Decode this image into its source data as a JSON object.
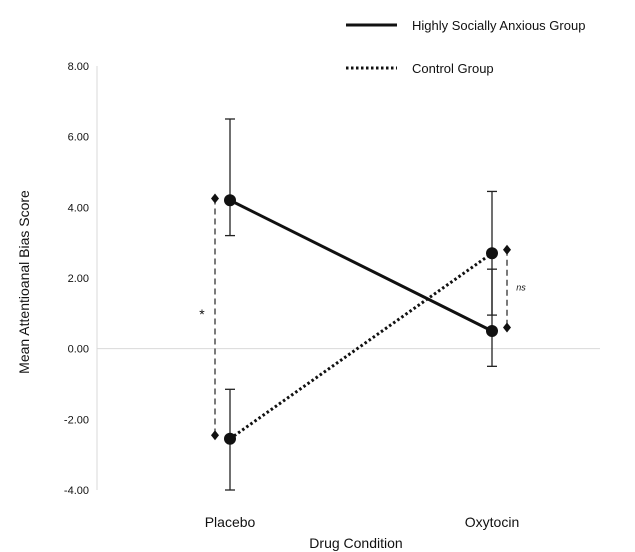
{
  "chart_data": {
    "type": "line",
    "xlabel": "Drug Condition",
    "ylabel": "Mean Attentioanal Bias Score",
    "categories": [
      "Placebo",
      "Oxytocin"
    ],
    "ylim": [
      -4,
      8
    ],
    "yticks": [
      "-4.00",
      "-2.00",
      "0.00",
      "2.00",
      "4.00",
      "6.00",
      "8.00"
    ],
    "ytick_values": [
      -4,
      -2,
      0,
      2,
      4,
      6,
      8
    ],
    "grid": false,
    "legend_position": "top-right",
    "series": [
      {
        "name": "Highly Socially Anxious Group",
        "line_style": "solid",
        "values": [
          4.2,
          0.5
        ],
        "error_upper": [
          6.5,
          2.25
        ],
        "error_lower": [
          3.2,
          -0.5
        ]
      },
      {
        "name": "Control Group",
        "line_style": "dotted",
        "values": [
          -2.55,
          2.7
        ],
        "error_upper": [
          -1.15,
          4.45
        ],
        "error_lower": [
          -4.0,
          0.95
        ]
      }
    ],
    "annotations": [
      {
        "category": "Placebo",
        "text": "*",
        "from": -2.45,
        "to": 4.25
      },
      {
        "category": "Oxytocin",
        "text": "ns",
        "from": 0.6,
        "to": 2.8
      }
    ]
  }
}
